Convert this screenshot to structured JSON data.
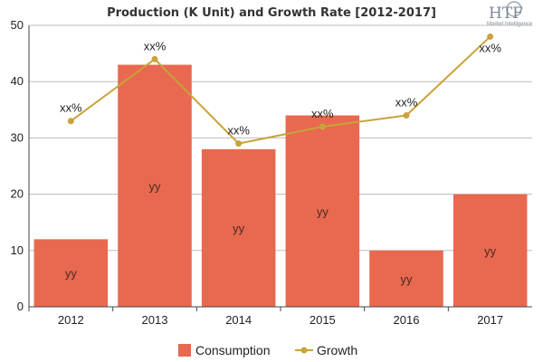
{
  "logo": {
    "text": "HTF",
    "subtext": "Market Intelligence"
  },
  "chart_data": {
    "type": "bar",
    "title": "Production (K Unit) and Growth Rate [2012-2017]",
    "xlabel": "",
    "ylabel": "",
    "categories": [
      "2012",
      "2013",
      "2014",
      "2015",
      "2016",
      "2017"
    ],
    "ylim": [
      0,
      50
    ],
    "yticks": [
      0,
      10,
      20,
      30,
      40,
      50
    ],
    "grid": "horizontal",
    "legend_position": "bottom-center",
    "series": [
      {
        "name": "Consumption",
        "type": "bar",
        "color": "#e8694f",
        "values": [
          12,
          43,
          28,
          34,
          10,
          20
        ],
        "labels": [
          "yy",
          "yy",
          "yy",
          "yy",
          "yy",
          "yy"
        ]
      },
      {
        "name": "Growth",
        "type": "line",
        "color": "#c9a33a",
        "values": [
          33,
          44,
          29,
          32,
          34,
          48
        ],
        "labels": [
          "xx%",
          "xx%",
          "xx%",
          "xx%",
          "xx%",
          "xx%"
        ]
      }
    ]
  }
}
